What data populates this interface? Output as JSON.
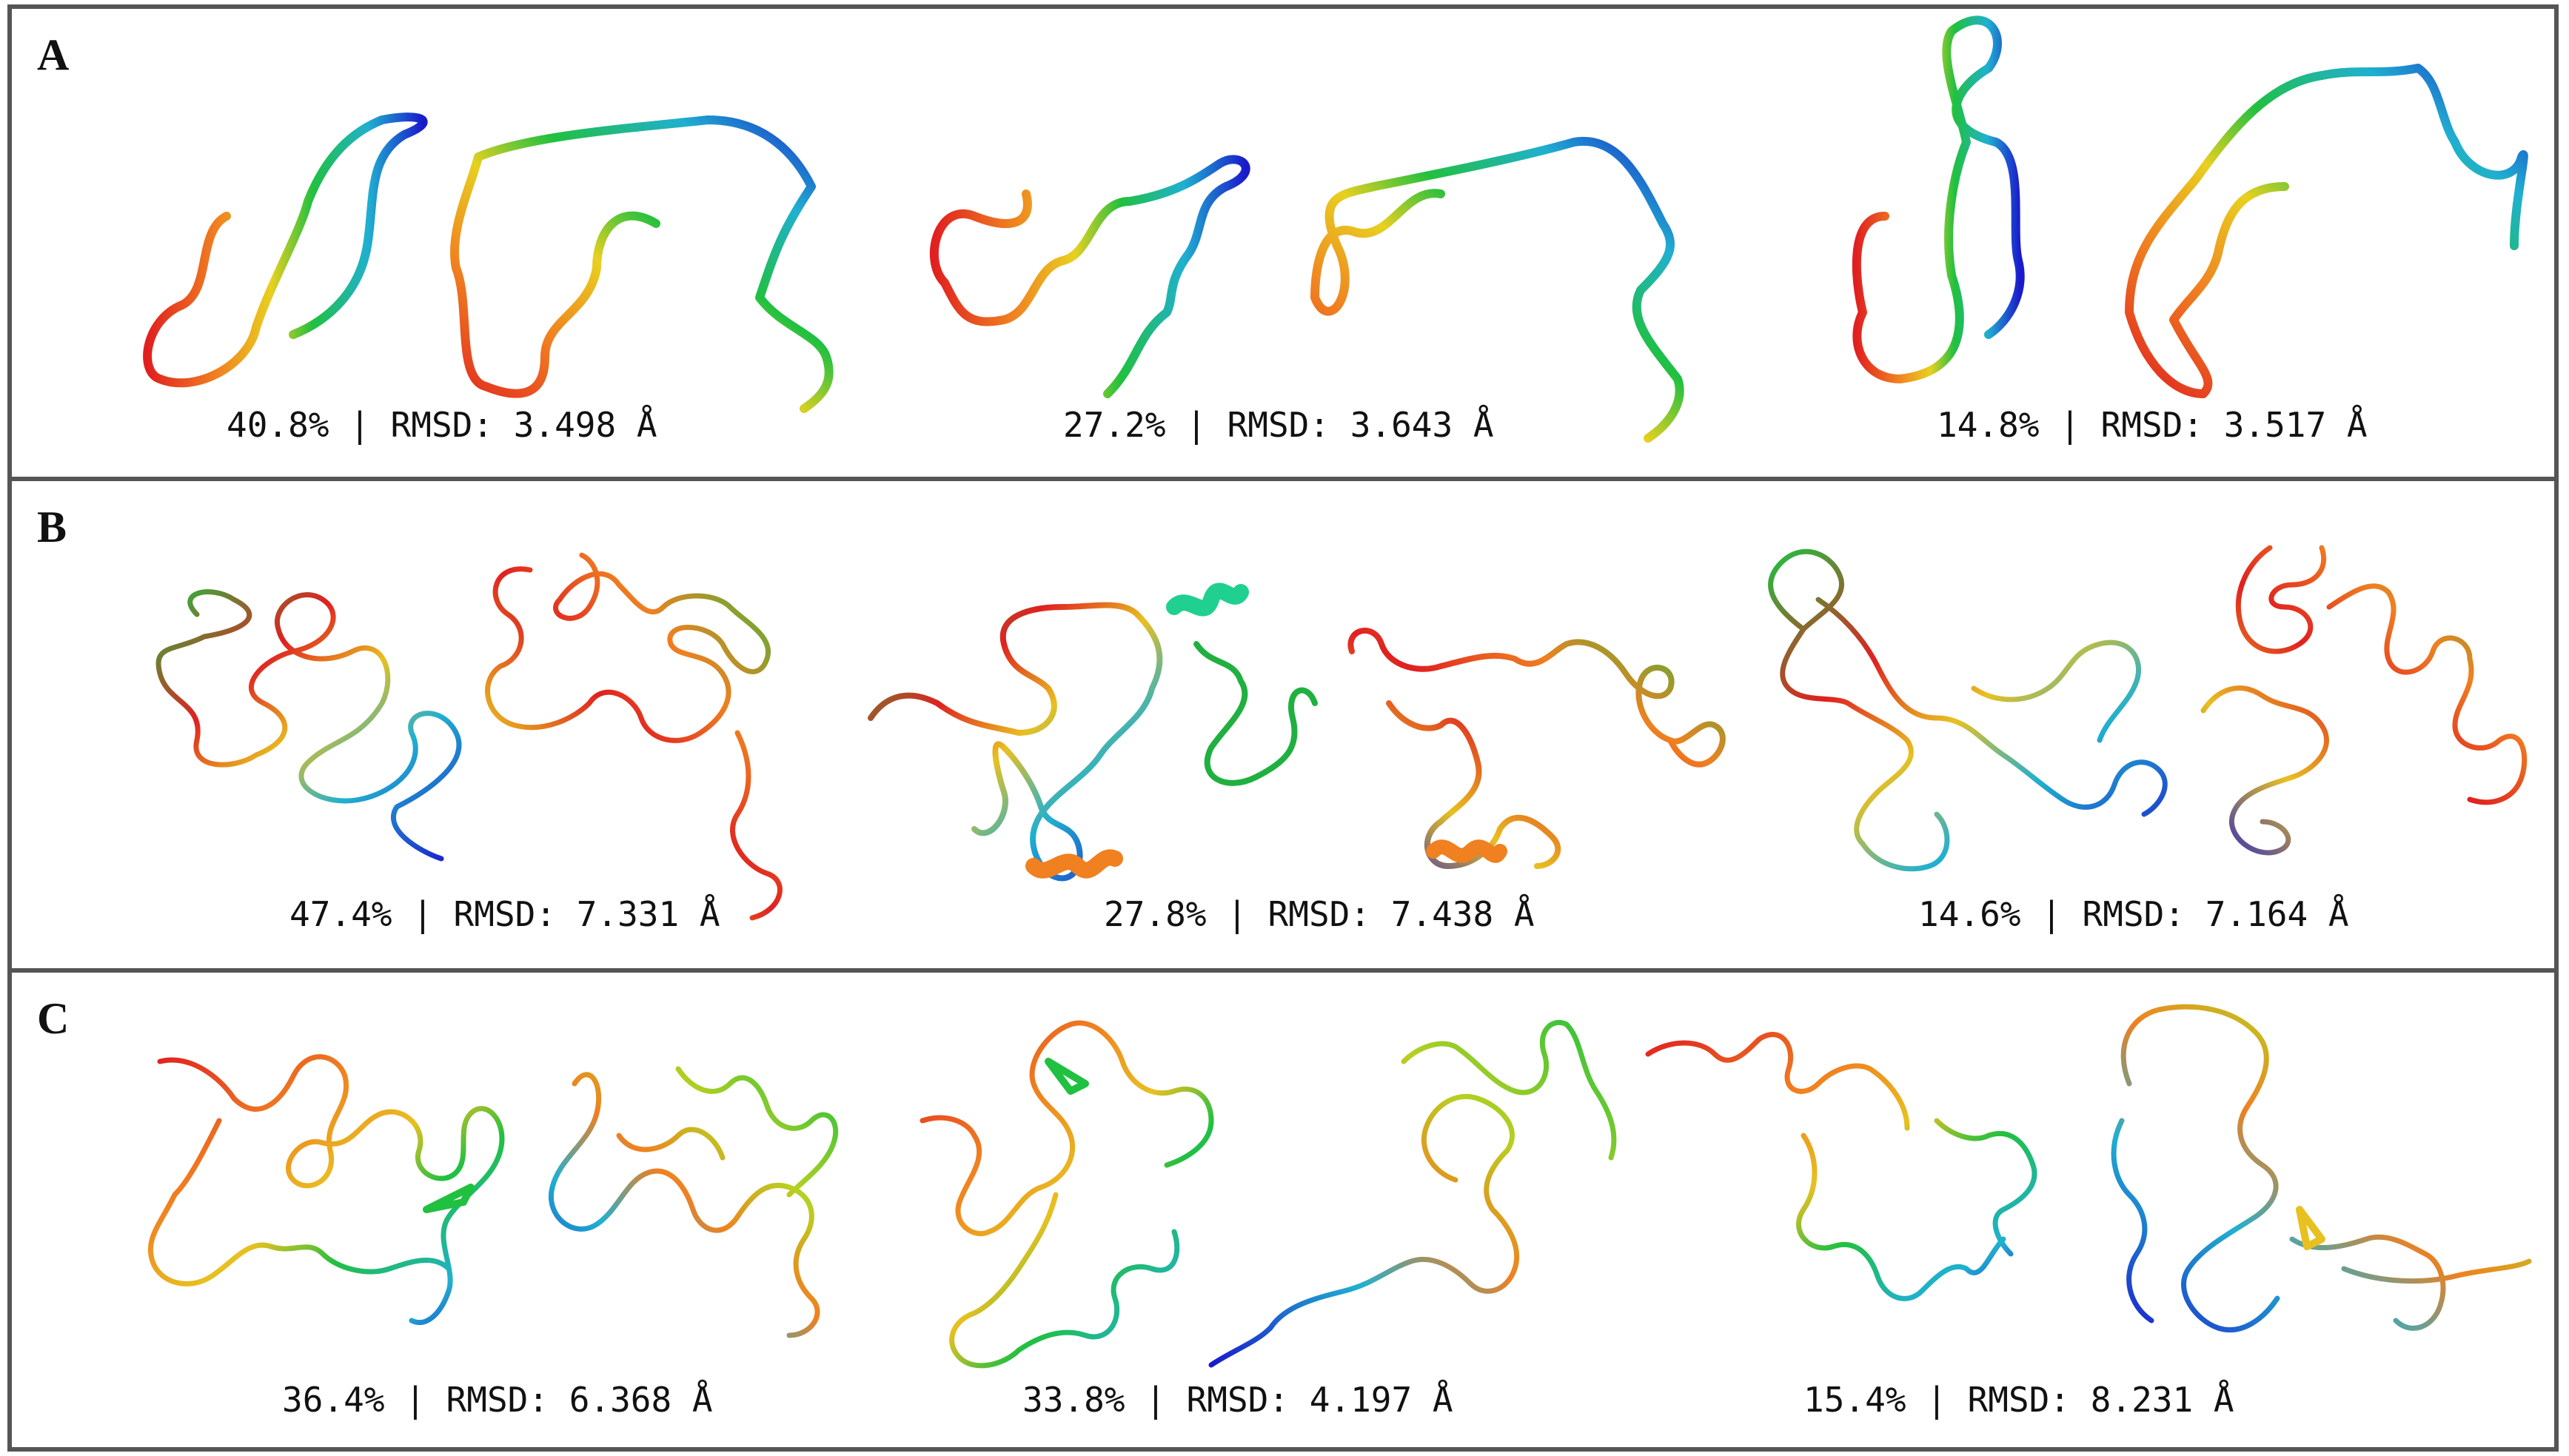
{
  "panels": [
    {
      "letter": "A",
      "structures": [
        {
          "caption": "40.8% | RMSD: 3.498 Å"
        },
        {
          "caption": "27.2% | RMSD: 3.643 Å"
        },
        {
          "caption": "14.8% | RMSD: 3.517 Å"
        }
      ]
    },
    {
      "letter": "B",
      "structures": [
        {
          "caption": "47.4% | RMSD: 7.331 Å"
        },
        {
          "caption": "27.8% | RMSD: 7.438 Å"
        },
        {
          "caption": "14.6% | RMSD: 7.164 Å"
        }
      ]
    },
    {
      "letter": "C",
      "structures": [
        {
          "caption": "36.4% | RMSD: 6.368 Å"
        },
        {
          "caption": "33.8% | RMSD: 4.197 Å"
        },
        {
          "caption": "15.4% | RMSD: 8.231 Å"
        }
      ]
    }
  ],
  "colors": {
    "border": "#555555",
    "rainbow": [
      "#1a1acc",
      "#2070e0",
      "#20c8d8",
      "#20c040",
      "#b8d020",
      "#e8c020",
      "#f08020",
      "#e02020"
    ]
  }
}
